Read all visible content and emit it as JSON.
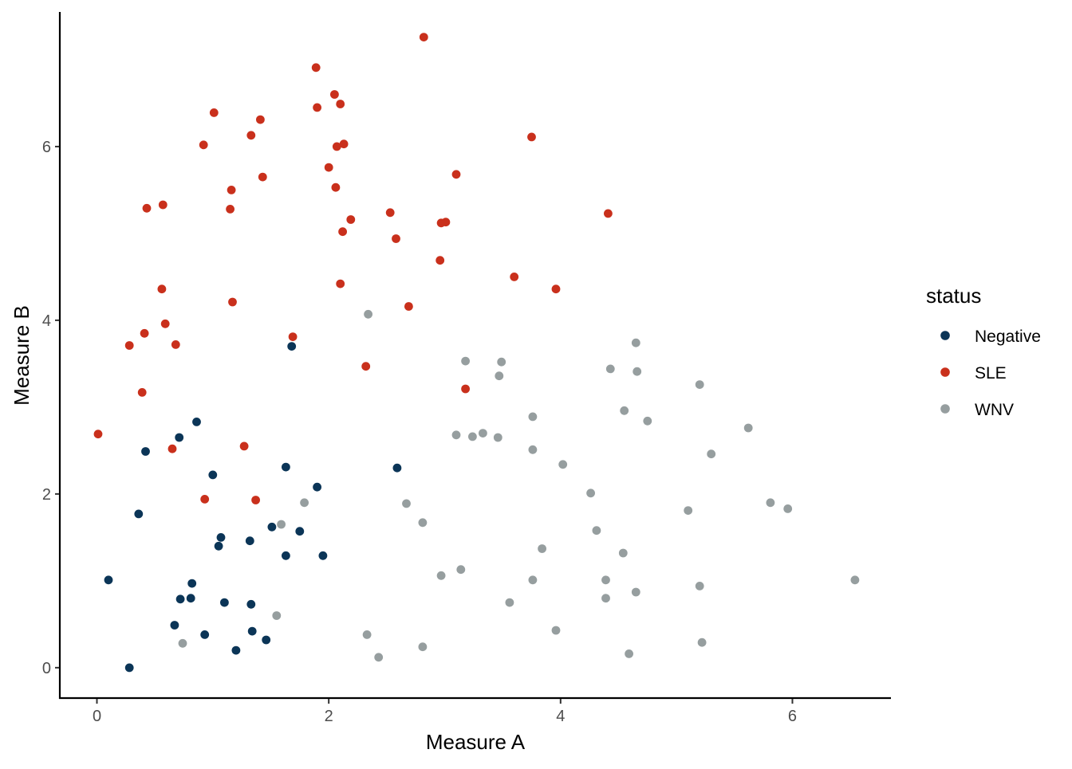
{
  "chart_data": {
    "type": "scatter",
    "title": "",
    "xlabel": "Measure A",
    "ylabel": "Measure B",
    "xlim": [
      -0.32,
      6.85
    ],
    "ylim": [
      -0.35,
      7.55
    ],
    "x_ticks": [
      0,
      2,
      4,
      6
    ],
    "y_ticks": [
      0,
      2,
      4,
      6
    ],
    "grid": false,
    "legend": {
      "title": "status",
      "position": "right"
    },
    "series": [
      {
        "name": "Negative",
        "color": "#0b3557",
        "points": [
          [
            0.28,
            0.0
          ],
          [
            0.1,
            1.01
          ],
          [
            0.36,
            1.77
          ],
          [
            0.42,
            2.49
          ],
          [
            0.67,
            0.49
          ],
          [
            0.71,
            2.65
          ],
          [
            0.72,
            0.79
          ],
          [
            0.81,
            0.8
          ],
          [
            0.82,
            0.97
          ],
          [
            0.86,
            2.83
          ],
          [
            0.93,
            0.38
          ],
          [
            1.0,
            2.22
          ],
          [
            1.05,
            1.4
          ],
          [
            1.07,
            1.5
          ],
          [
            1.1,
            0.75
          ],
          [
            1.2,
            0.2
          ],
          [
            1.32,
            1.46
          ],
          [
            1.33,
            0.73
          ],
          [
            1.34,
            0.42
          ],
          [
            1.46,
            0.32
          ],
          [
            1.51,
            1.62
          ],
          [
            1.63,
            1.29
          ],
          [
            1.63,
            2.31
          ],
          [
            1.68,
            3.7
          ],
          [
            1.75,
            1.57
          ],
          [
            1.9,
            2.08
          ],
          [
            1.95,
            1.29
          ],
          [
            2.59,
            2.3
          ]
        ]
      },
      {
        "name": "SLE",
        "color": "#c9301c",
        "points": [
          [
            0.01,
            2.69
          ],
          [
            0.28,
            3.71
          ],
          [
            0.39,
            3.17
          ],
          [
            0.41,
            3.85
          ],
          [
            0.43,
            5.29
          ],
          [
            0.56,
            4.36
          ],
          [
            0.57,
            5.33
          ],
          [
            0.59,
            3.96
          ],
          [
            0.65,
            2.52
          ],
          [
            0.68,
            3.72
          ],
          [
            0.92,
            6.02
          ],
          [
            0.93,
            1.94
          ],
          [
            1.01,
            6.39
          ],
          [
            1.15,
            5.28
          ],
          [
            1.16,
            5.5
          ],
          [
            1.17,
            4.21
          ],
          [
            1.27,
            2.55
          ],
          [
            1.33,
            6.13
          ],
          [
            1.37,
            1.93
          ],
          [
            1.41,
            6.31
          ],
          [
            1.43,
            5.65
          ],
          [
            1.69,
            3.81
          ],
          [
            1.89,
            6.91
          ],
          [
            1.9,
            6.45
          ],
          [
            2.0,
            5.76
          ],
          [
            2.05,
            6.6
          ],
          [
            2.06,
            5.53
          ],
          [
            2.07,
            6.0
          ],
          [
            2.1,
            4.42
          ],
          [
            2.1,
            6.49
          ],
          [
            2.12,
            5.02
          ],
          [
            2.13,
            6.03
          ],
          [
            2.19,
            5.16
          ],
          [
            2.32,
            3.47
          ],
          [
            2.53,
            5.24
          ],
          [
            2.58,
            4.94
          ],
          [
            2.69,
            4.16
          ],
          [
            2.82,
            7.26
          ],
          [
            2.96,
            4.69
          ],
          [
            2.97,
            5.12
          ],
          [
            3.01,
            5.13
          ],
          [
            3.1,
            5.68
          ],
          [
            3.18,
            3.21
          ],
          [
            3.6,
            4.5
          ],
          [
            3.75,
            6.11
          ],
          [
            3.96,
            4.36
          ],
          [
            4.41,
            5.23
          ]
        ]
      },
      {
        "name": "WNV",
        "color": "#969e9f",
        "points": [
          [
            0.74,
            0.28
          ],
          [
            1.55,
            0.6
          ],
          [
            1.59,
            1.65
          ],
          [
            1.79,
            1.9
          ],
          [
            2.33,
            0.38
          ],
          [
            2.34,
            4.07
          ],
          [
            2.43,
            0.12
          ],
          [
            2.67,
            1.89
          ],
          [
            2.81,
            1.67
          ],
          [
            2.81,
            0.24
          ],
          [
            2.97,
            1.06
          ],
          [
            3.1,
            2.68
          ],
          [
            3.14,
            1.13
          ],
          [
            3.18,
            3.53
          ],
          [
            3.24,
            2.66
          ],
          [
            3.33,
            2.7
          ],
          [
            3.46,
            2.65
          ],
          [
            3.47,
            3.36
          ],
          [
            3.49,
            3.52
          ],
          [
            3.56,
            0.75
          ],
          [
            3.76,
            2.89
          ],
          [
            3.76,
            1.01
          ],
          [
            3.76,
            2.51
          ],
          [
            3.84,
            1.37
          ],
          [
            3.96,
            0.43
          ],
          [
            4.02,
            2.34
          ],
          [
            4.26,
            2.01
          ],
          [
            4.31,
            1.58
          ],
          [
            4.39,
            1.01
          ],
          [
            4.39,
            0.8
          ],
          [
            4.43,
            3.44
          ],
          [
            4.54,
            1.32
          ],
          [
            4.55,
            2.96
          ],
          [
            4.59,
            0.16
          ],
          [
            4.65,
            3.74
          ],
          [
            4.65,
            0.87
          ],
          [
            4.66,
            3.41
          ],
          [
            4.75,
            2.84
          ],
          [
            5.1,
            1.81
          ],
          [
            5.2,
            3.26
          ],
          [
            5.2,
            0.94
          ],
          [
            5.22,
            0.29
          ],
          [
            5.3,
            2.46
          ],
          [
            5.62,
            2.76
          ],
          [
            5.81,
            1.9
          ],
          [
            5.96,
            1.83
          ],
          [
            6.54,
            1.01
          ]
        ]
      }
    ]
  }
}
